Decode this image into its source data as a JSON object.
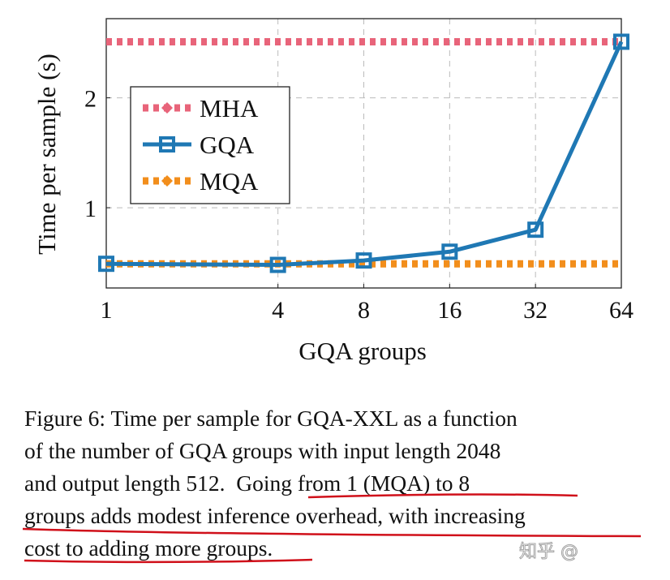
{
  "chart_data": {
    "type": "line",
    "xlabel": "GQA groups",
    "ylabel": "Time per sample (s)",
    "x_scale": "log2",
    "x": [
      1,
      4,
      8,
      16,
      32,
      64
    ],
    "xticks": [
      "1",
      "4",
      "8",
      "16",
      "32",
      "64"
    ],
    "yticks": [
      "1",
      "2"
    ],
    "ylim": [
      0.27,
      2.72
    ],
    "xlim": [
      1,
      64
    ],
    "grid": true,
    "legend_position": "center-left",
    "series": [
      {
        "name": "MHA",
        "values": [
          2.51,
          2.51,
          2.51,
          2.51,
          2.51,
          2.51
        ],
        "color": "#e8647a",
        "style": "dotted",
        "marker": "diamond"
      },
      {
        "name": "GQA",
        "values": [
          0.49,
          0.48,
          0.52,
          0.6,
          0.8,
          2.51
        ],
        "color": "#1f78b4",
        "style": "solid",
        "marker": "square"
      },
      {
        "name": "MQA",
        "values": [
          0.49,
          0.49,
          0.49,
          0.49,
          0.49,
          0.49
        ],
        "color": "#f28e1c",
        "style": "dotted",
        "marker": "diamond"
      }
    ]
  },
  "caption": {
    "lines": [
      "Figure 6: Time per sample for GQA-XXL as a function",
      "of the number of GQA groups with input length 2048",
      "and output length 512.  Going from 1 (MQA) to 8",
      "groups adds modest inference overhead, with increasing",
      "cost to adding more groups."
    ]
  },
  "annotation_color": "#d0101a",
  "watermark": "知乎 @"
}
